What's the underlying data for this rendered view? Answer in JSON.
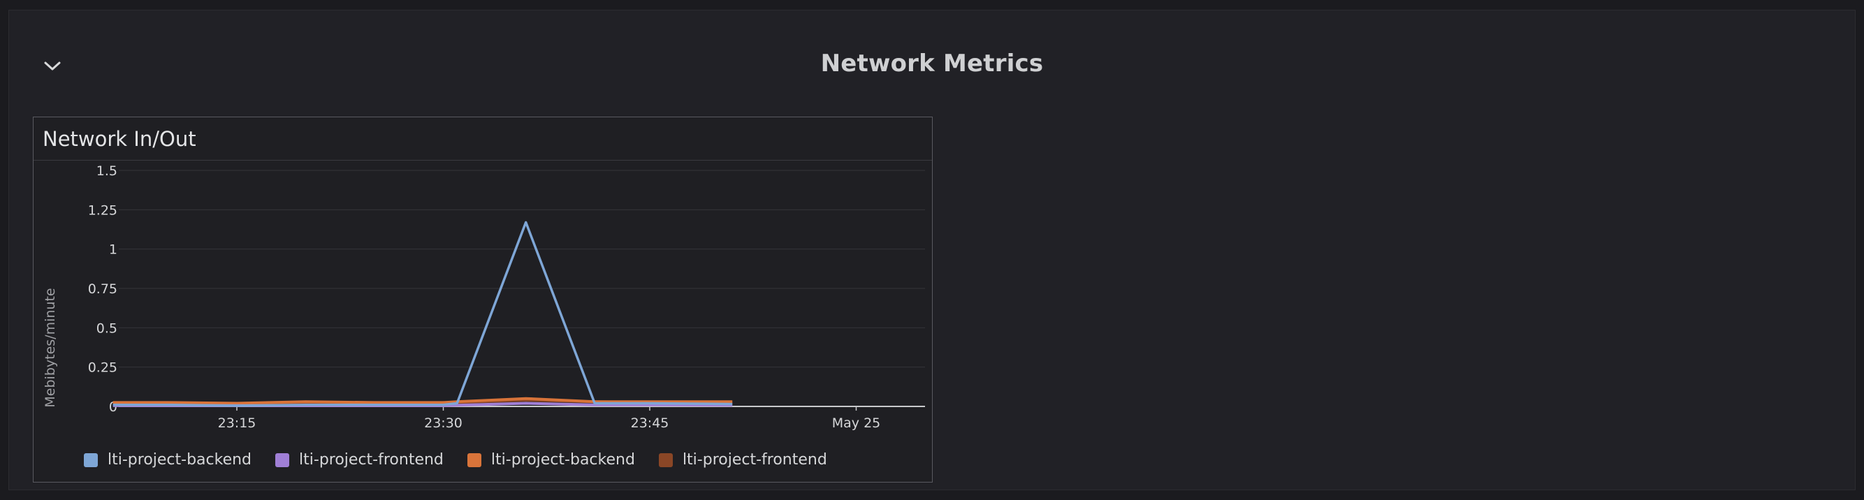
{
  "section": {
    "title": "Network Metrics",
    "collapse_icon": "chevron-down-icon"
  },
  "panel": {
    "title": "Network In/Out"
  },
  "chart_data": {
    "type": "line",
    "title": "Network In/Out",
    "ylabel": "Mebibytes/minute",
    "xlabel": "",
    "ylim": [
      0,
      1.5
    ],
    "y_ticks": [
      "0",
      "0.25",
      "0.5",
      "0.75",
      "1",
      "1.25",
      "1.5"
    ],
    "x_ticks": [
      "23:15",
      "23:30",
      "23:45",
      "May 25"
    ],
    "grid": true,
    "legend_position": "bottom-left",
    "x": [
      "23:06",
      "23:10",
      "23:15",
      "23:20",
      "23:25",
      "23:30",
      "23:31",
      "23:36",
      "23:41",
      "23:45",
      "23:51"
    ],
    "series": [
      {
        "name": "lti-project-backend",
        "color": "#7ea6d6",
        "values": [
          0.01,
          0.01,
          0.005,
          0.01,
          0.01,
          0.01,
          0.02,
          1.17,
          0.02,
          0.02,
          0.015
        ]
      },
      {
        "name": "lti-project-frontend",
        "color": "#a07fd6",
        "values": [
          0.005,
          0.005,
          0.005,
          0.005,
          0.005,
          0.005,
          0.008,
          0.02,
          0.01,
          0.01,
          0.008
        ]
      },
      {
        "name": "lti-project-backend",
        "color": "#d9743a",
        "values": [
          0.025,
          0.025,
          0.02,
          0.03,
          0.025,
          0.025,
          0.03,
          0.05,
          0.03,
          0.03,
          0.03
        ]
      },
      {
        "name": "lti-project-frontend",
        "color": "#8a4626",
        "values": [
          0.02,
          0.02,
          0.02,
          0.02,
          0.02,
          0.02,
          0.025,
          0.04,
          0.03,
          0.025,
          0.025
        ]
      }
    ]
  }
}
